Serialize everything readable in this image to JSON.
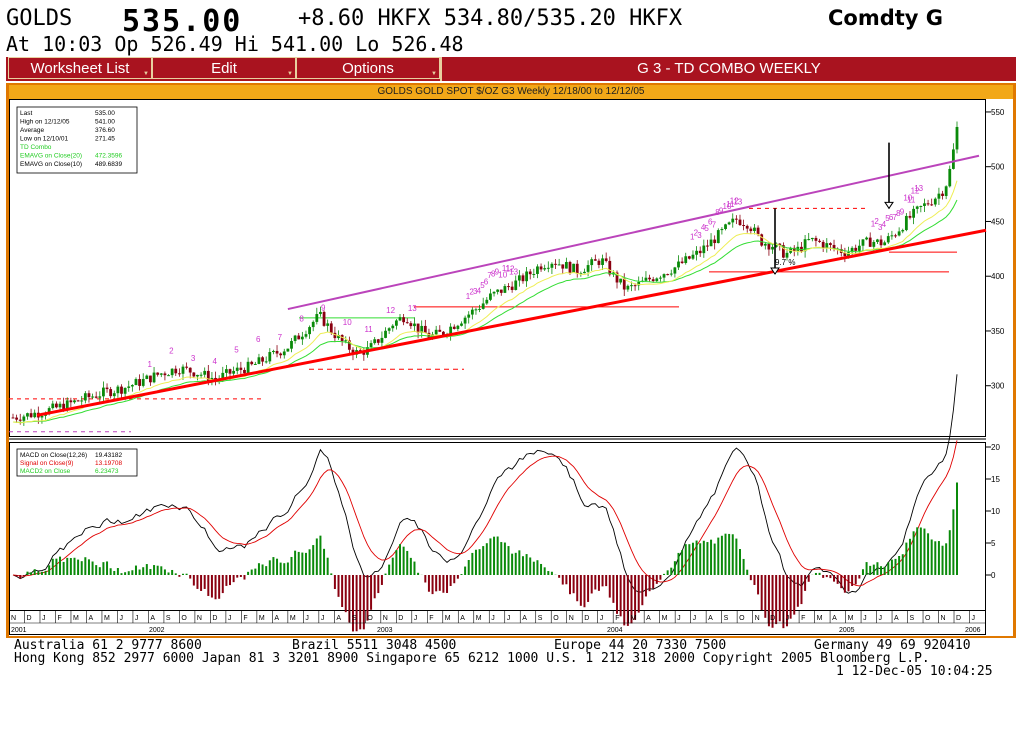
{
  "header": {
    "ticker": "GOLDS",
    "price": "535.00",
    "change_quote": "+8.60 HKFX 534.80/535.20 HKFX",
    "function": "Comdty G",
    "line2": "At 10:03  Op 526.49 Hi 541.00 Lo 526.48"
  },
  "menu": {
    "worksheet": "Worksheet List",
    "edit": "Edit",
    "options": "Options",
    "title": "G  3 - TD COMBO WEEKLY"
  },
  "chart_title": "GOLDS GOLD SPOT $/OZ G3 Weekly 12/18/00 to 12/12/05",
  "legend_top": [
    {
      "label": "Last",
      "value": "535.00",
      "color": "#000000"
    },
    {
      "label": "High on  12/12/05",
      "value": "541.00",
      "color": "#000000"
    },
    {
      "label": "Average",
      "value": "376.60",
      "color": "#000000"
    },
    {
      "label": "Low on  12/10/01",
      "value": "271.45",
      "color": "#000000"
    },
    {
      "label": "TD Combo",
      "value": "",
      "color": "#22cc22"
    },
    {
      "label": "EMAVG on Close(20)",
      "value": "472.3596",
      "color": "#22cc22"
    },
    {
      "label": "EMAVG on Close(10)",
      "value": "489.6839",
      "color": "#000000"
    }
  ],
  "legend_bottom": [
    {
      "label": "MACD on Close(12,26)",
      "value": "19.43182",
      "color": "#000000"
    },
    {
      "label": "Signal on Close(9)",
      "value": "13.19708",
      "color": "#e00000"
    },
    {
      "label": "MACD2 on Close",
      "value": "6.23473",
      "color": "#22cc22"
    }
  ],
  "annotations": {
    "pct": "9.7 %"
  },
  "colors": {
    "menubar": "#a9131f",
    "frame": "#e07800",
    "titlebar": "#f2a818",
    "support": "#ff0000",
    "resistance": "#bb44bb",
    "ema20": "#33dd33",
    "ema10": "#eeee55",
    "up": "#0a8a0a",
    "down": "#8a0010"
  },
  "chart_data": [
    {
      "type": "candlestick",
      "title": "GOLDS GOLD SPOT $/OZ G3 Weekly 12/18/00 to 12/12/05",
      "ylim": [
        255,
        560
      ],
      "y_ticks": [
        "300",
        "350",
        "400",
        "450",
        "500",
        "550"
      ],
      "x_months": [
        "N",
        "D",
        "J",
        "F",
        "M",
        "A",
        "M",
        "J",
        "J",
        "A",
        "S",
        "O",
        "N",
        "D",
        "J",
        "F",
        "M",
        "A",
        "M",
        "J",
        "J",
        "A",
        "S",
        "O",
        "N",
        "D",
        "J",
        "F",
        "M",
        "A",
        "M",
        "J",
        "J",
        "A",
        "S",
        "O",
        "N",
        "D",
        "J",
        "F",
        "M",
        "A",
        "M",
        "J",
        "J",
        "A",
        "S",
        "O",
        "N",
        "D",
        "J",
        "F",
        "M",
        "A",
        "M",
        "J",
        "J",
        "A",
        "S",
        "O",
        "N",
        "D",
        "J"
      ],
      "x_years": [
        "2001",
        "2002",
        "2003",
        "2004",
        "2005",
        "2006"
      ],
      "close_path": [
        [
          0,
          271
        ],
        [
          6,
          274
        ],
        [
          12,
          278
        ],
        [
          18,
          283
        ],
        [
          24,
          289
        ],
        [
          30,
          294
        ],
        [
          36,
          298
        ],
        [
          42,
          304
        ],
        [
          48,
          311
        ],
        [
          54,
          316
        ],
        [
          60,
          312
        ],
        [
          66,
          306
        ],
        [
          72,
          313
        ],
        [
          78,
          318
        ],
        [
          84,
          327
        ],
        [
          90,
          336
        ],
        [
          96,
          353
        ],
        [
          100,
          364
        ],
        [
          104,
          350
        ],
        [
          108,
          338
        ],
        [
          112,
          330
        ],
        [
          116,
          333
        ],
        [
          120,
          344
        ],
        [
          124,
          357
        ],
        [
          128,
          364
        ],
        [
          132,
          352
        ],
        [
          136,
          345
        ],
        [
          140,
          348
        ],
        [
          144,
          356
        ],
        [
          148,
          364
        ],
        [
          152,
          372
        ],
        [
          156,
          382
        ],
        [
          160,
          388
        ],
        [
          164,
          394
        ],
        [
          168,
          401
        ],
        [
          172,
          410
        ],
        [
          176,
          414
        ],
        [
          180,
          410
        ],
        [
          184,
          405
        ],
        [
          188,
          410
        ],
        [
          192,
          415
        ],
        [
          196,
          400
        ],
        [
          200,
          388
        ],
        [
          204,
          392
        ],
        [
          208,
          398
        ],
        [
          212,
          403
        ],
        [
          216,
          408
        ],
        [
          220,
          415
        ],
        [
          224,
          422
        ],
        [
          228,
          432
        ],
        [
          232,
          442
        ],
        [
          236,
          452
        ],
        [
          240,
          448
        ],
        [
          244,
          432
        ],
        [
          248,
          428
        ],
        [
          252,
          420
        ],
        [
          256,
          424
        ],
        [
          260,
          433
        ],
        [
          264,
          430
        ],
        [
          268,
          425
        ],
        [
          272,
          422
        ],
        [
          276,
          428
        ],
        [
          280,
          432
        ],
        [
          284,
          430
        ],
        [
          288,
          440
        ],
        [
          292,
          452
        ],
        [
          296,
          462
        ],
        [
          300,
          470
        ],
        [
          304,
          480
        ],
        [
          306,
          500
        ],
        [
          308,
          535
        ]
      ],
      "ema20_end": 472.3596,
      "ema10_end": 489.6839,
      "td_labels": [
        "1",
        "2",
        "3",
        "4",
        "5",
        "6",
        "7",
        "8",
        "9",
        "10",
        "11",
        "12",
        "13"
      ]
    },
    {
      "type": "line",
      "title": "MACD",
      "ylim": [
        -5,
        20
      ],
      "y_ticks": [
        "0",
        "5",
        "10",
        "15",
        "20"
      ],
      "series": [
        {
          "name": "MACD on Close(12,26)",
          "last": 19.43182
        },
        {
          "name": "Signal on Close(9)",
          "last": 13.19708
        },
        {
          "name": "MACD2 on Close",
          "last": 6.23473
        }
      ]
    }
  ],
  "footer": {
    "l1a": "Australia 61 2 9777 8600",
    "l1b": "Brazil 5511 3048 4500",
    "l1c": "Europe 44 20 7330 7500",
    "l1d": "Germany 49 69 920410",
    "l2": "Hong Kong 852 2977 6000 Japan 81 3 3201 8900 Singapore 65 6212 1000 U.S. 1 212 318 2000 Copyright 2005 Bloomberg L.P.",
    "l3": "1 12-Dec-05 10:04:25"
  }
}
